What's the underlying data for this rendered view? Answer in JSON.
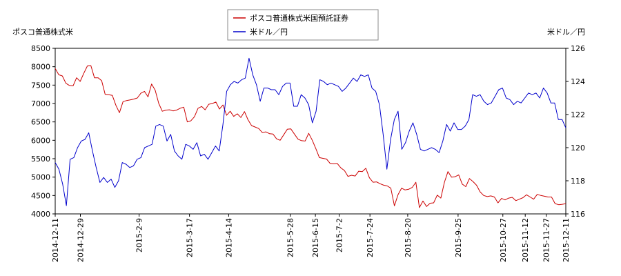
{
  "chart_data": {
    "type": "line",
    "title": "",
    "left_axis_label": "ポスコ普通株式米",
    "right_axis_label": "米ドル／円",
    "legend": [
      {
        "name": "ポスコ普通株式米国預託証券",
        "color": "#cc0000"
      },
      {
        "name": "米ドル／円",
        "color": "#0000cc"
      }
    ],
    "legend_placement": "top-center",
    "grid": false,
    "x_start": "2014-12-11",
    "x_end": "2015-12-11",
    "x_ticks": [
      "2014-12-11",
      "2014-12-29",
      "2015-2-9",
      "2015-3-17",
      "2015-4-14",
      "2015-5-28",
      "2015-6-15",
      "2015-7-2",
      "2015-7-24",
      "2015-8-20",
      "2015-9-25",
      "2015-10-27",
      "2015-11-12",
      "2015-11-27",
      "2015-12-11"
    ],
    "y_left": {
      "min": 4000,
      "max": 8500,
      "ticks": [
        4000,
        4500,
        5000,
        5500,
        6000,
        6500,
        7000,
        7500,
        8000,
        8500
      ]
    },
    "y_right": {
      "min": 116,
      "max": 126,
      "ticks": [
        116,
        118,
        120,
        122,
        124,
        126
      ]
    },
    "series": [
      {
        "name": "ポスコ普通株式米国預託証券",
        "axis": "left",
        "color": "#cc0000",
        "values": [
          7950,
          7780,
          7750,
          7550,
          7490,
          7480,
          7700,
          7600,
          7820,
          8020,
          8030,
          7700,
          7700,
          7620,
          7250,
          7240,
          7220,
          6950,
          6750,
          7050,
          7080,
          7100,
          7120,
          7150,
          7280,
          7330,
          7180,
          7530,
          7360,
          7000,
          6790,
          6820,
          6830,
          6800,
          6820,
          6870,
          6900,
          6500,
          6530,
          6640,
          6870,
          6920,
          6830,
          6980,
          7000,
          7040,
          6850,
          6960,
          6680,
          6790,
          6650,
          6720,
          6620,
          6780,
          6560,
          6400,
          6360,
          6320,
          6210,
          6230,
          6180,
          6170,
          6040,
          6000,
          6150,
          6300,
          6310,
          6170,
          6030,
          5990,
          5980,
          6190,
          6000,
          5770,
          5530,
          5510,
          5490,
          5370,
          5360,
          5370,
          5250,
          5180,
          5020,
          5050,
          5030,
          5160,
          5150,
          5240,
          4980,
          4860,
          4870,
          4820,
          4780,
          4760,
          4700,
          4220,
          4520,
          4700,
          4650,
          4670,
          4720,
          4860,
          4170,
          4350,
          4200,
          4290,
          4300,
          4510,
          4430,
          4860,
          5150,
          5000,
          5010,
          5060,
          4810,
          4740,
          4960,
          4880,
          4780,
          4600,
          4500,
          4470,
          4490,
          4460,
          4300,
          4420,
          4380,
          4430,
          4450,
          4360,
          4400,
          4440,
          4520,
          4460,
          4400,
          4530,
          4500,
          4480,
          4460,
          4460,
          4280,
          4250,
          4260,
          4280
        ],
        "values_note": ""
      },
      {
        "name": "米ドル／円",
        "axis": "right",
        "color": "#0000cc",
        "values": [
          119.1,
          118.7,
          117.8,
          116.5,
          119.3,
          119.4,
          120.0,
          120.4,
          120.5,
          120.9,
          119.8,
          118.8,
          117.9,
          118.2,
          117.9,
          118.1,
          117.6,
          118.0,
          119.1,
          119.0,
          118.8,
          118.9,
          119.3,
          119.4,
          120.0,
          120.1,
          120.2,
          121.3,
          121.4,
          121.3,
          120.4,
          120.8,
          119.8,
          119.5,
          119.3,
          120.2,
          120.1,
          119.9,
          120.3,
          119.5,
          119.6,
          119.3,
          119.7,
          120.1,
          119.8,
          121.4,
          123.4,
          123.8,
          124.0,
          123.9,
          124.1,
          124.2,
          125.4,
          124.4,
          123.8,
          122.8,
          123.6,
          123.6,
          123.5,
          123.5,
          123.2,
          123.7,
          123.9,
          123.9,
          122.5,
          122.5,
          123.2,
          123.0,
          122.6,
          121.5,
          122.2,
          124.1,
          124.0,
          123.8,
          123.9,
          123.8,
          123.7,
          123.4,
          123.6,
          123.9,
          124.2,
          124.0,
          124.4,
          124.3,
          124.4,
          123.6,
          123.4,
          122.6,
          120.8,
          118.7,
          120.5,
          121.7,
          122.2,
          119.9,
          120.3,
          121.0,
          121.5,
          120.8,
          119.9,
          119.8,
          119.9,
          120.0,
          119.9,
          119.7,
          120.4,
          121.4,
          121.0,
          121.5,
          121.1,
          121.1,
          121.3,
          121.7,
          123.2,
          123.1,
          123.2,
          122.8,
          122.6,
          122.7,
          123.1,
          123.5,
          123.6,
          123.0,
          122.9,
          122.6,
          122.8,
          122.7,
          123.0,
          123.3,
          123.2,
          123.3,
          123.0,
          123.6,
          123.3,
          122.7,
          122.7,
          121.7,
          121.7,
          121.2
        ],
        "values_note": ""
      }
    ]
  }
}
